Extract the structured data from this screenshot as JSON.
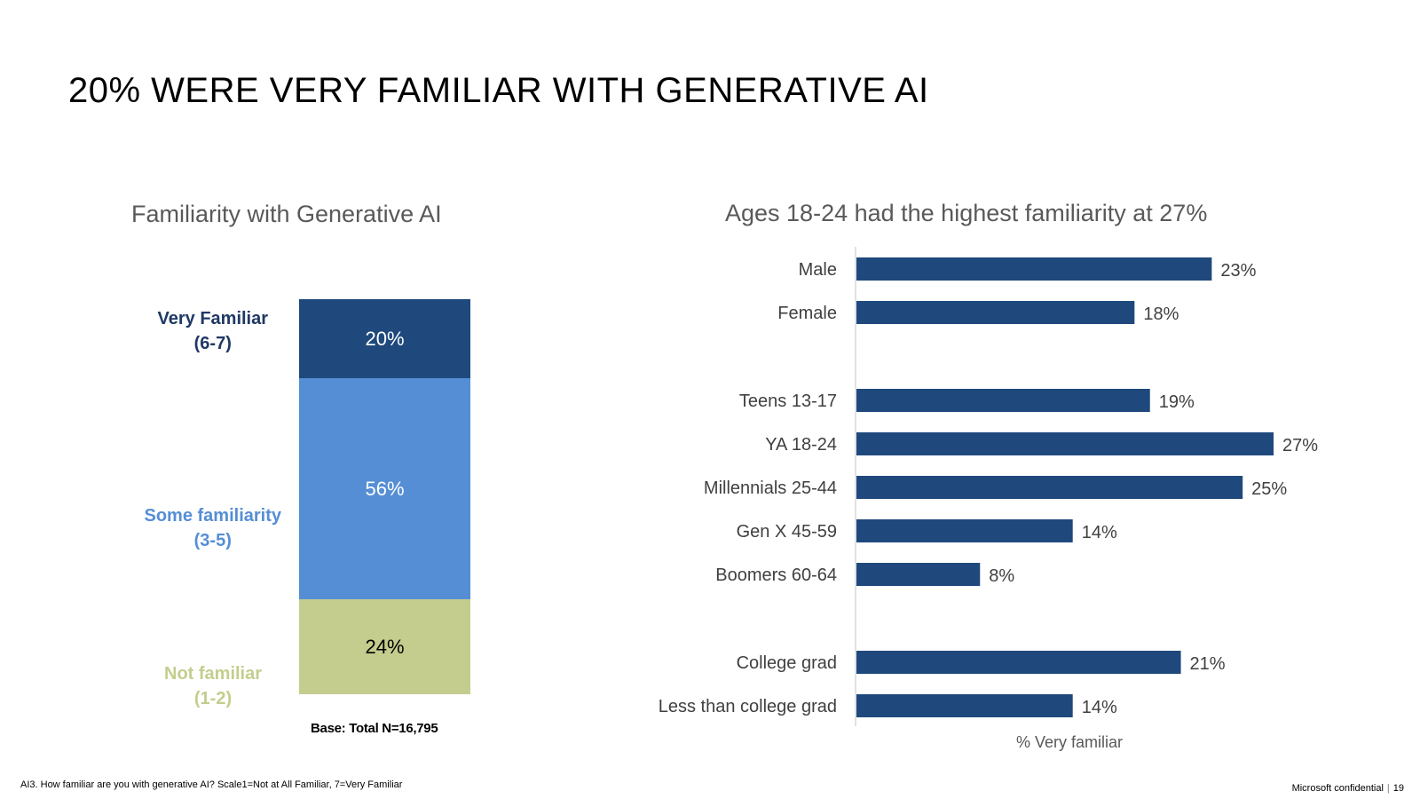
{
  "slide": {
    "title": "20% WERE VERY FAMILIAR WITH GENERATIVE AI",
    "footnote": "AI3. How familiar are you with generative AI?   Scale1=Not at All Familiar, 7=Very Familiar",
    "confidential": "Microsoft confidential",
    "page_number": "19"
  },
  "chart_data": [
    {
      "type": "bar",
      "stacked": true,
      "title": "Familiarity with Generative AI",
      "categories": [
        "Very Familiar (6-7)",
        "Some familiarity (3-5)",
        "Not familiar (1-2)"
      ],
      "values": [
        20,
        56,
        24
      ],
      "value_labels": [
        "20%",
        "56%",
        "24%"
      ],
      "label_lines": [
        [
          "Very Familiar",
          "(6-7)"
        ],
        [
          "Some familiarity",
          "(3-5)"
        ],
        [
          "Not familiar",
          "(1-2)"
        ]
      ],
      "colors": [
        "#1f497d",
        "#558ed5",
        "#c4cd8d"
      ],
      "value_text_colors": [
        "#ffffff",
        "#ffffff",
        "#000000"
      ],
      "label_colors": [
        "#1f3864",
        "#558ed5",
        "#c4cd8d"
      ],
      "base_note": "Base: Total N=16,795",
      "unit": "%"
    },
    {
      "type": "bar",
      "orientation": "horizontal",
      "title": "Ages 18-24 had the highest familiarity at 27%",
      "xlabel": "% Very familiar",
      "categories": [
        "Male",
        "Female",
        "Teens 13-17",
        "YA 18-24",
        "Millennials 25-44",
        "Gen X 45-59",
        "Boomers 60-64",
        "College grad",
        "Less than college grad"
      ],
      "values": [
        23,
        18,
        19,
        27,
        25,
        14,
        8,
        21,
        14
      ],
      "value_labels": [
        "23%",
        "18%",
        "19%",
        "27%",
        "25%",
        "14%",
        "8%",
        "21%",
        "14%"
      ],
      "groups": [
        [
          "Male",
          "Female"
        ],
        [
          "Teens 13-17",
          "YA 18-24",
          "Millennials 25-44",
          "Gen X 45-59",
          "Boomers 60-64"
        ],
        [
          "College grad",
          "Less than college grad"
        ]
      ],
      "xlim": [
        0,
        30
      ],
      "color": "#1f497d",
      "grid": false
    }
  ]
}
